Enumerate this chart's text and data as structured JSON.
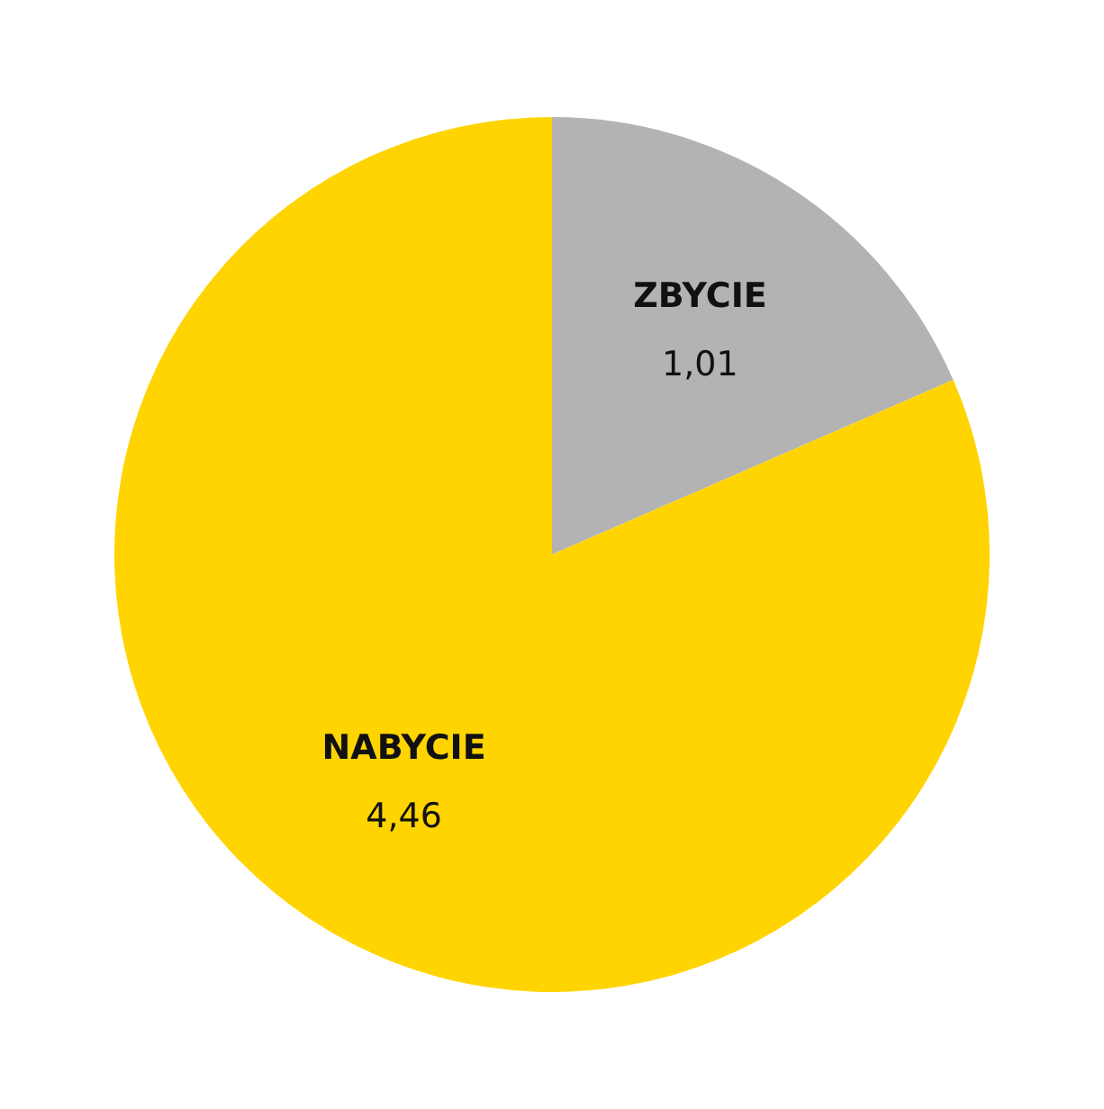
{
  "chart_data": {
    "type": "pie",
    "categories": [
      "ZBYCIE",
      "NABYCIE"
    ],
    "values": [
      1.01,
      4.46
    ],
    "value_labels": [
      "1,01",
      "4,46"
    ],
    "colors": [
      "#b3b3b3",
      "#ffd400"
    ]
  }
}
